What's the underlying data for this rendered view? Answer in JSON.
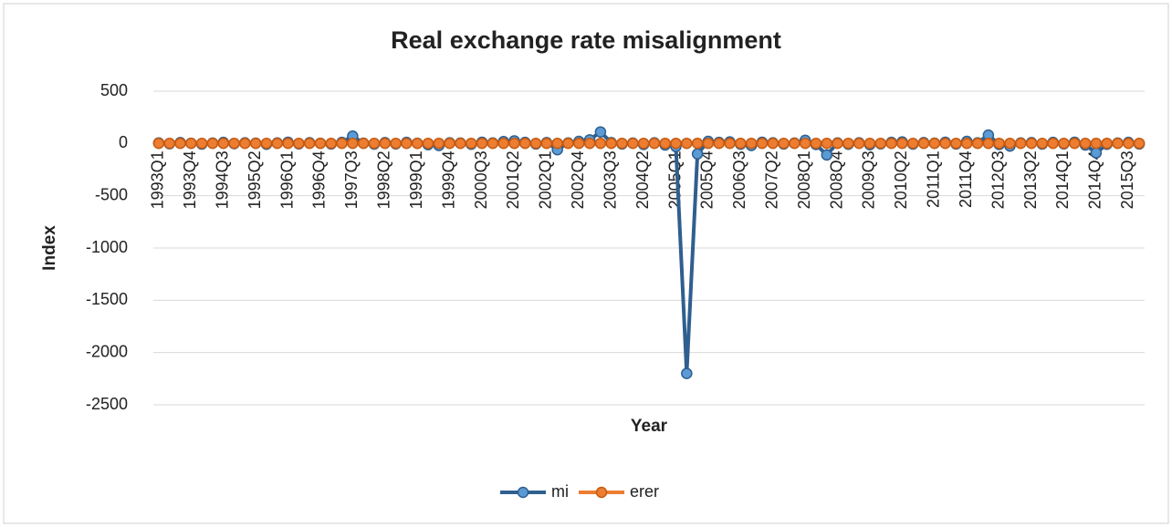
{
  "chart_data": {
    "type": "line",
    "title": "Real exchange rate misalignment",
    "x_label": "Year",
    "y_label": "Index",
    "categories": [
      "1993Q1",
      null,
      null,
      "1993Q4",
      null,
      null,
      "1994Q3",
      null,
      null,
      "1995Q2",
      null,
      null,
      "1996Q1",
      null,
      null,
      "1996Q4",
      null,
      null,
      "1997Q3",
      null,
      null,
      "1998Q2",
      null,
      null,
      "1999Q1",
      null,
      null,
      "1999Q4",
      null,
      null,
      "2000Q3",
      null,
      null,
      "2001Q2",
      null,
      null,
      "2002Q1",
      null,
      null,
      "2002Q4",
      null,
      null,
      "2003Q3",
      null,
      null,
      "2004Q2",
      null,
      null,
      "2005Q1",
      null,
      null,
      "2005Q4",
      null,
      null,
      "2006Q3",
      null,
      null,
      "2007Q2",
      null,
      null,
      "2008Q1",
      null,
      null,
      "2008Q4",
      null,
      null,
      "2009Q3",
      null,
      null,
      "2010Q2",
      null,
      null,
      "2011Q1",
      null,
      null,
      "2011Q4",
      null,
      null,
      "2012Q3",
      null,
      null,
      "2013Q2",
      null,
      null,
      "2014Q1",
      null,
      null,
      "2014Q4",
      null,
      null,
      "2015Q3",
      null
    ],
    "series": [
      {
        "name": "mi",
        "color": "#5b9bd5",
        "line_color": "#2f5f8f",
        "values": [
          5,
          -3,
          8,
          2,
          -6,
          4,
          10,
          -2,
          6,
          3,
          -8,
          5,
          12,
          -4,
          7,
          2,
          -5,
          10,
          70,
          3,
          -6,
          8,
          -4,
          10,
          2,
          -12,
          -20,
          6,
          4,
          -8,
          12,
          5,
          18,
          25,
          10,
          -5,
          8,
          -60,
          5,
          20,
          35,
          110,
          8,
          -5,
          4,
          -10,
          6,
          -15,
          -30,
          -2200,
          -100,
          20,
          10,
          15,
          -8,
          -20,
          12,
          6,
          -5,
          4,
          30,
          -10,
          -110,
          5,
          -8,
          6,
          -12,
          -4,
          10,
          15,
          -6,
          8,
          3,
          12,
          -5,
          20,
          6,
          80,
          -10,
          -25,
          5,
          8,
          -6,
          10,
          -4,
          12,
          -15,
          -90,
          -8,
          4,
          10,
          -5
        ]
      },
      {
        "name": "erer",
        "color": "#ed7d31",
        "line_color": "#ed7d31",
        "values": [
          1,
          1,
          1,
          1,
          1,
          1,
          1,
          1,
          1,
          1,
          1,
          1,
          1,
          1,
          1,
          1,
          1,
          1,
          1,
          1,
          1,
          1,
          1,
          1,
          1,
          1,
          1,
          1,
          1,
          1,
          1,
          1,
          1,
          1,
          1,
          1,
          1,
          1,
          1,
          1,
          1,
          1,
          1,
          1,
          1,
          1,
          1,
          1,
          1,
          1,
          1,
          1,
          1,
          1,
          1,
          1,
          1,
          1,
          1,
          1,
          1,
          1,
          1,
          1,
          1,
          1,
          1,
          1,
          1,
          1,
          1,
          1,
          1,
          1,
          1,
          1,
          1,
          1,
          1,
          1,
          1,
          1,
          1,
          1,
          1,
          1,
          1,
          1,
          1,
          1,
          1,
          1
        ]
      }
    ],
    "ylim": [
      -2500,
      500
    ],
    "yticks": [
      -2500,
      -2000,
      -1500,
      -1000,
      -500,
      0,
      500
    ],
    "grid": true,
    "legend": "bottom"
  }
}
